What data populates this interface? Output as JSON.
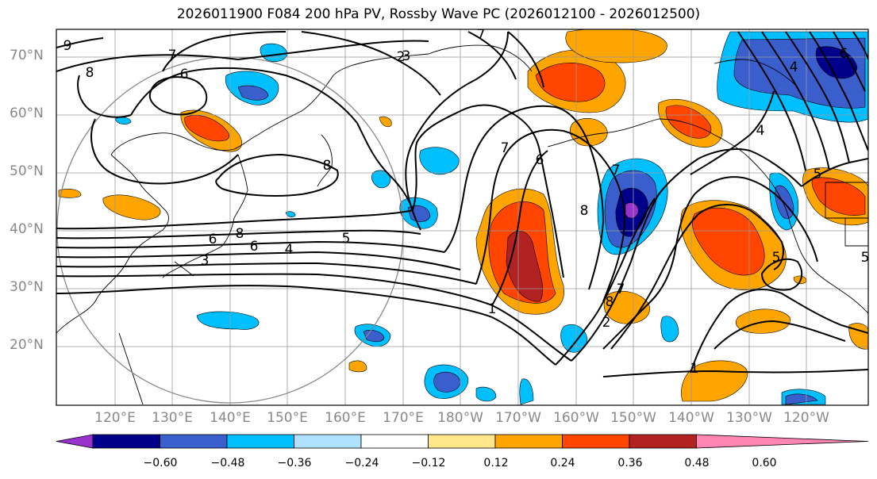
{
  "title": "2026011900 F084 200 hPa PV, Rossby Wave PC (2026012100 - 2026012500)",
  "lat_labels": [
    "70°N",
    "60°N",
    "50°N",
    "40°N",
    "30°N",
    "20°N"
  ],
  "lon_labels": [
    "120°E",
    "130°E",
    "140°E",
    "150°E",
    "160°E",
    "170°E",
    "180°W",
    "170°W",
    "160°W",
    "150°W",
    "140°W",
    "130°W",
    "120°W"
  ],
  "colorbar": {
    "ticks": [
      "−0.60",
      "−0.48",
      "−0.36",
      "−0.24",
      "−0.12",
      "0.12",
      "0.24",
      "0.36",
      "0.48",
      "0.60"
    ],
    "colors": [
      "#9932cc",
      "#00008b",
      "#3a5fcd",
      "#00bfff",
      "#b0e2ff",
      "#ffffff",
      "#ffe78a",
      "#ffa500",
      "#ff4500",
      "#b22222",
      "#ff85b3"
    ]
  },
  "contour_labels": [
    "9",
    "8",
    "7",
    "6",
    "3",
    "7",
    "7",
    "8",
    "6",
    "7",
    "8",
    "6",
    "4",
    "5",
    "8",
    "6",
    "4",
    "5",
    "7",
    "8",
    "2",
    "1",
    "1",
    "5",
    "5",
    "4",
    "6",
    "3",
    "2"
  ]
}
